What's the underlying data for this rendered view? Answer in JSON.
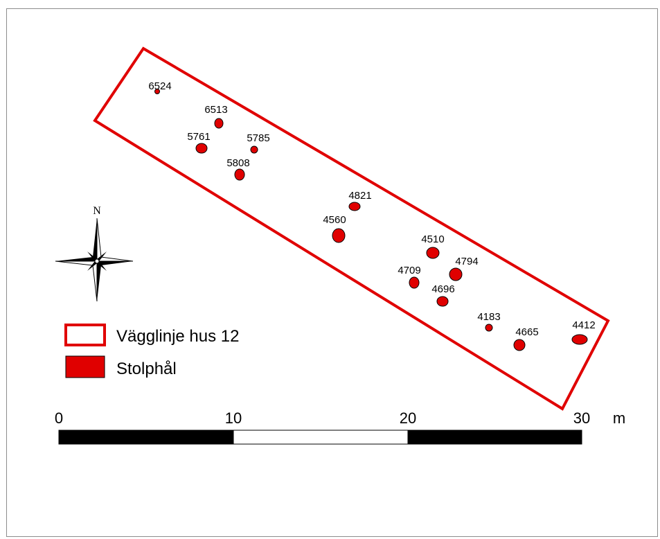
{
  "map": {
    "house_outline_color": "#e00000",
    "posthole_color": "#e00000",
    "postholes": [
      {
        "id": "6524"
      },
      {
        "id": "6513"
      },
      {
        "id": "5761"
      },
      {
        "id": "5785"
      },
      {
        "id": "5808"
      },
      {
        "id": "4821"
      },
      {
        "id": "4560"
      },
      {
        "id": "4510"
      },
      {
        "id": "4794"
      },
      {
        "id": "4709"
      },
      {
        "id": "4696"
      },
      {
        "id": "4183"
      },
      {
        "id": "4665"
      },
      {
        "id": "4412"
      }
    ]
  },
  "north_arrow": {
    "label": "N",
    "icon": "compass-rose-icon"
  },
  "legend": {
    "items": [
      {
        "label": "Vägglinje hus 12",
        "symbol": "outline"
      },
      {
        "label": "Stolphål",
        "symbol": "filled"
      }
    ]
  },
  "scale_bar": {
    "ticks": [
      "0",
      "10",
      "20",
      "30"
    ],
    "unit": "m"
  }
}
